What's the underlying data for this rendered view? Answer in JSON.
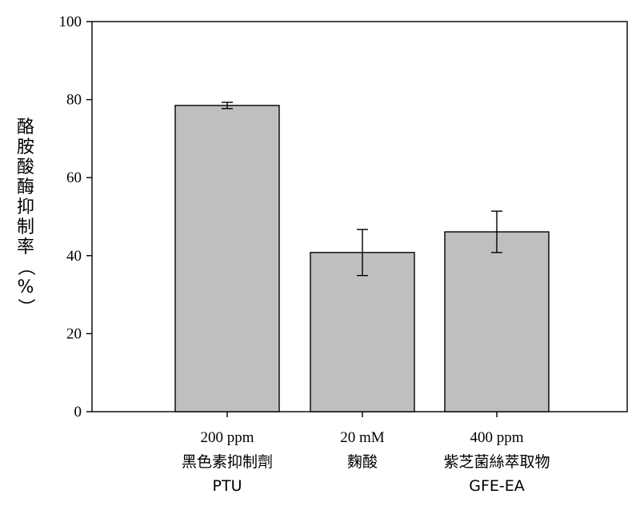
{
  "chart_data": {
    "type": "bar",
    "categories": [
      {
        "dose": "200 ppm",
        "name": "黑色素抑制劑",
        "code": "PTU"
      },
      {
        "dose": "20 mM",
        "name": "麴酸",
        "code": ""
      },
      {
        "dose": "400 ppm",
        "name": "紫芝菌絲萃取物",
        "code": "GFE-EA"
      }
    ],
    "values": [
      78.5,
      40.8,
      46.1
    ],
    "errors": [
      0.8,
      5.9,
      5.3
    ],
    "title": "",
    "xlabel": "",
    "ylabel": "酪胺酸酶抑制率（%）",
    "ylabel_chars": [
      "酪",
      "胺",
      "酸",
      "酶",
      "抑",
      "制",
      "率",
      "（",
      "%",
      "）"
    ],
    "ylim": [
      0,
      100
    ],
    "yticks": [
      "0",
      "20",
      "40",
      "60",
      "80",
      "100"
    ],
    "grid": false,
    "legend": "none",
    "bar_color": "#bfbfbf",
    "edge_color": "#000000"
  }
}
